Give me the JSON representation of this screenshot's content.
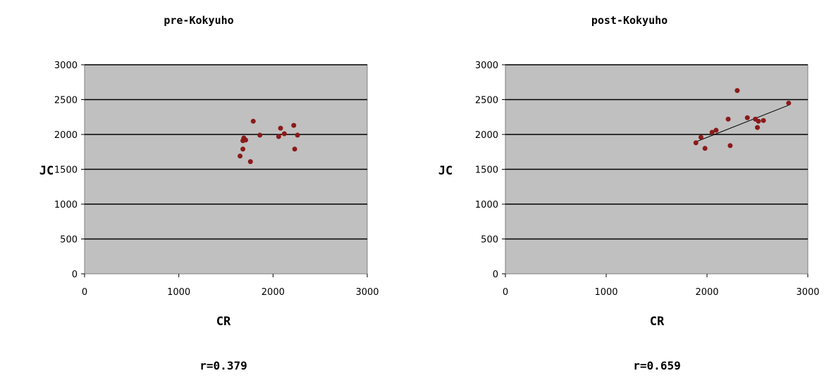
{
  "chart_data": [
    {
      "type": "scatter",
      "title": "pre-Kokyuho",
      "xlabel": "CR",
      "ylabel": "JC",
      "xlim": [
        0,
        3000
      ],
      "ylim": [
        0,
        3000
      ],
      "x_ticks": [
        "0",
        "1000",
        "2000",
        "3000"
      ],
      "y_ticks": [
        "0",
        "500",
        "1000",
        "1500",
        "2000",
        "2500",
        "3000"
      ],
      "grid": "horizontal",
      "trendline": false,
      "annotation": "r=0.379",
      "point_color": "#8b1a1a",
      "background_color": "#c0c0c0",
      "points": [
        {
          "x": 1650,
          "y": 1690
        },
        {
          "x": 1680,
          "y": 1790
        },
        {
          "x": 1680,
          "y": 1910
        },
        {
          "x": 1690,
          "y": 1950
        },
        {
          "x": 1710,
          "y": 1920
        },
        {
          "x": 1760,
          "y": 1610
        },
        {
          "x": 1790,
          "y": 2190
        },
        {
          "x": 1860,
          "y": 1990
        },
        {
          "x": 2060,
          "y": 1970
        },
        {
          "x": 2080,
          "y": 2090
        },
        {
          "x": 2120,
          "y": 2010
        },
        {
          "x": 2220,
          "y": 2130
        },
        {
          "x": 2230,
          "y": 1790
        },
        {
          "x": 2260,
          "y": 1990
        }
      ]
    },
    {
      "type": "scatter",
      "title": "post-Kokyuho",
      "xlabel": "CR",
      "ylabel": "JC",
      "xlim": [
        0,
        3000
      ],
      "ylim": [
        0,
        3000
      ],
      "x_ticks": [
        "0",
        "1000",
        "2000",
        "3000"
      ],
      "y_ticks": [
        "0",
        "500",
        "1000",
        "1500",
        "2000",
        "2500",
        "3000"
      ],
      "grid": "horizontal",
      "trendline": true,
      "trendline_points": [
        {
          "x": 1900,
          "y": 1900
        },
        {
          "x": 2810,
          "y": 2420
        }
      ],
      "annotation": "r=0.659",
      "point_color": "#8b1a1a",
      "background_color": "#c0c0c0",
      "points": [
        {
          "x": 1890,
          "y": 1880
        },
        {
          "x": 1940,
          "y": 1960
        },
        {
          "x": 1980,
          "y": 1800
        },
        {
          "x": 2050,
          "y": 2030
        },
        {
          "x": 2090,
          "y": 2060
        },
        {
          "x": 2210,
          "y": 2220
        },
        {
          "x": 2230,
          "y": 1840
        },
        {
          "x": 2300,
          "y": 2630
        },
        {
          "x": 2400,
          "y": 2240
        },
        {
          "x": 2480,
          "y": 2220
        },
        {
          "x": 2500,
          "y": 2100
        },
        {
          "x": 2510,
          "y": 2190
        },
        {
          "x": 2560,
          "y": 2200
        },
        {
          "x": 2810,
          "y": 2450
        }
      ]
    }
  ]
}
